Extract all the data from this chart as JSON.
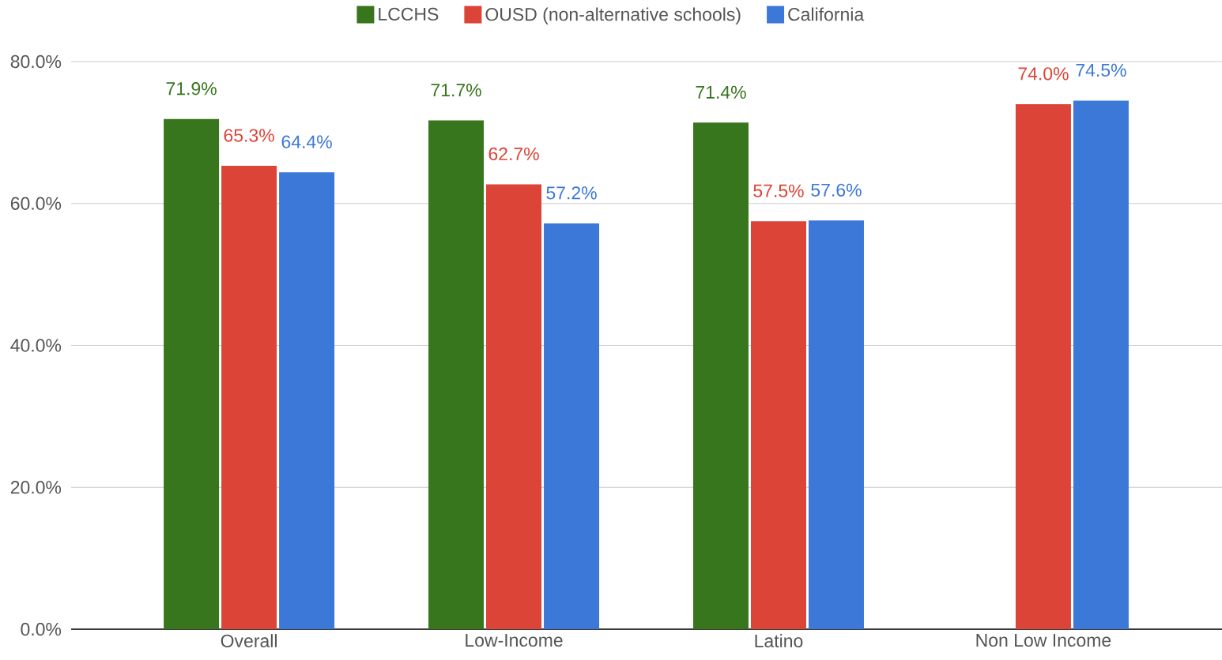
{
  "chart_data": {
    "type": "bar",
    "categories": [
      "Overall",
      "Low-Income",
      "Latino",
      "Non Low Income"
    ],
    "series": [
      {
        "name": "LCCHS",
        "color": "#38761d",
        "values": [
          71.9,
          71.7,
          71.4,
          null
        ],
        "value_labels": [
          "71.9%",
          "71.7%",
          "71.4%",
          null
        ]
      },
      {
        "name": "OUSD (non-alternative schools)",
        "color": "#db4437",
        "values": [
          65.3,
          62.7,
          57.5,
          74.0
        ],
        "value_labels": [
          "65.3%",
          "62.7%",
          "57.5%",
          "74.0%"
        ]
      },
      {
        "name": "California",
        "color": "#3c78d8",
        "values": [
          64.4,
          57.2,
          57.6,
          74.5
        ],
        "value_labels": [
          "64.4%",
          "57.2%",
          "57.6%",
          "74.5%"
        ]
      }
    ],
    "ylim": [
      0,
      80
    ],
    "yticks": [
      {
        "value": 0,
        "label": "0.0%"
      },
      {
        "value": 20,
        "label": "20.0%"
      },
      {
        "value": 40,
        "label": "40.0%"
      },
      {
        "value": 60,
        "label": "60.0%"
      },
      {
        "value": 80,
        "label": "80.0%"
      }
    ],
    "grid": "y",
    "legend": "top"
  }
}
